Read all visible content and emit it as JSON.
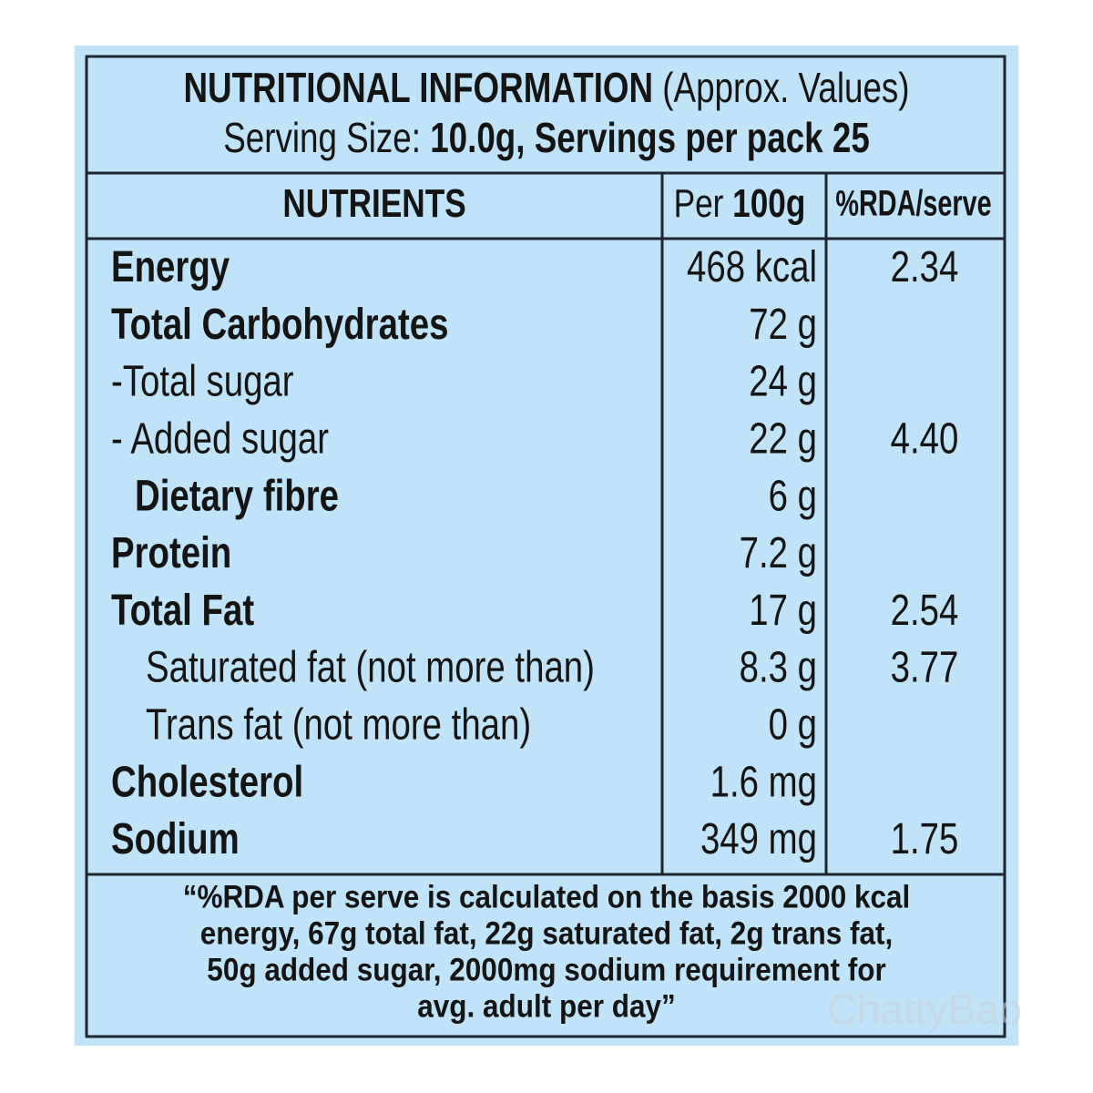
{
  "header": {
    "title": "NUTRITIONAL INFORMATION",
    "title_note": "(Approx. Values)",
    "serving_label": "Serving Size:",
    "serving_value": "10.0g, Servings per pack 25"
  },
  "table": {
    "columns": {
      "nutrients": "NUTRIENTS",
      "per_prefix": "Per",
      "per_unit": "100g",
      "rda": "%RDA/serve"
    },
    "rows": [
      [
        "Energy",
        "468 kcal",
        "2.34"
      ],
      [
        "Total Carbohydrates",
        "72 g",
        null
      ],
      [
        "-Total sugar",
        "24 g",
        null
      ],
      [
        "- Added sugar",
        "22 g",
        "4.40"
      ],
      [
        "Dietary fibre",
        "6 g",
        null
      ],
      [
        "Protein",
        "7.2 g",
        null
      ],
      [
        "Total Fat",
        "17 g",
        "2.54"
      ],
      [
        "Saturated fat (not more than)",
        "8.3 g",
        "3.77"
      ],
      [
        "Trans fat (not more than)",
        "0 g",
        null
      ],
      [
        "Cholesterol",
        "1.6 mg",
        null
      ],
      [
        "Sodium",
        "349 mg",
        "1.75"
      ]
    ]
  },
  "footnote": [
    "“%RDA per serve is calculated on the basis 2000 kcal",
    "energy, 67g total fat, 22g saturated fat, 2g trans fat,",
    "50g added sugar, 2000mg sodium requirement for",
    "avg. adult per day”"
  ],
  "watermark": "ChattyBao"
}
